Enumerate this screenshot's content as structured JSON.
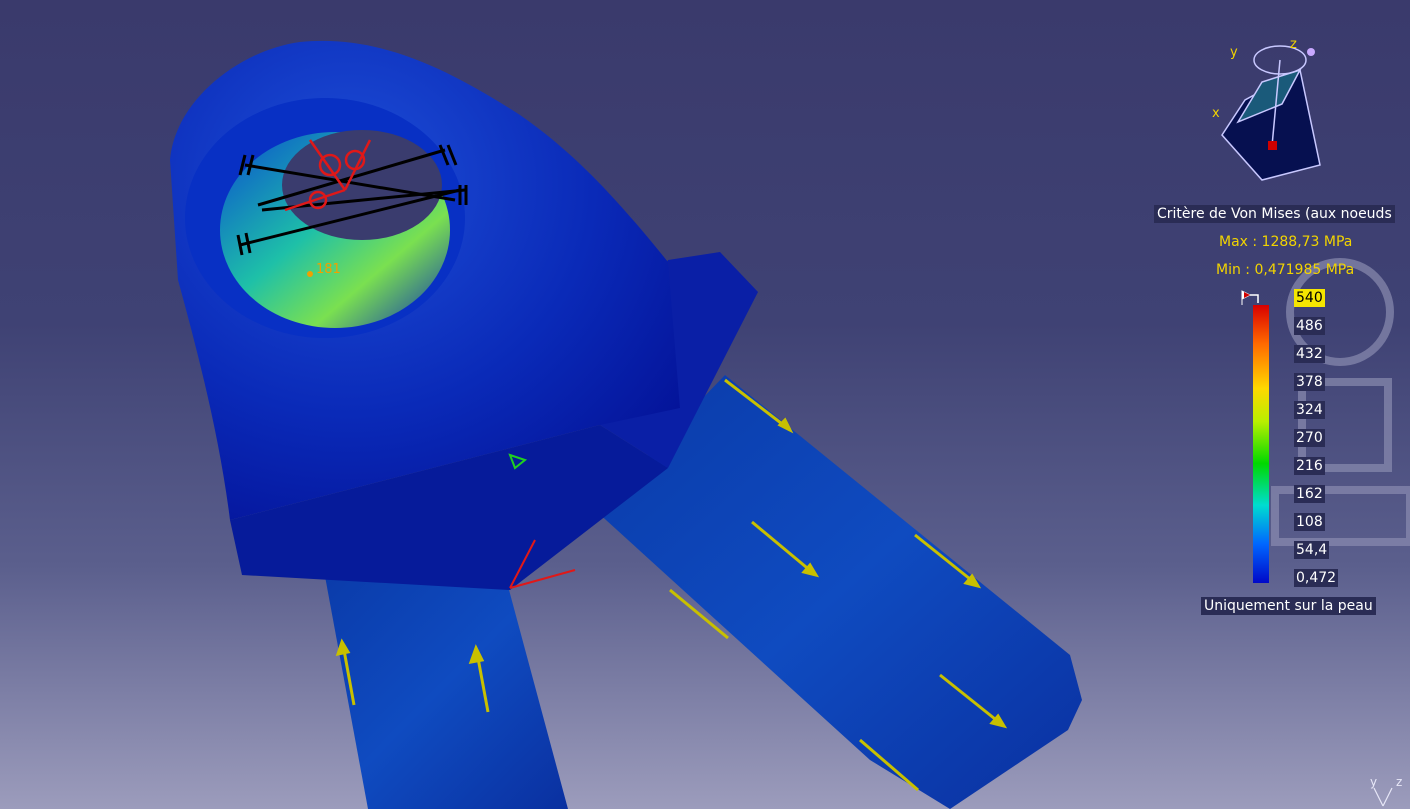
{
  "legend": {
    "title": "Critère de Von Mises (aux noeuds",
    "max": "Max : 1288,73 MPa",
    "min": "Min : 0,471985 MPa",
    "ticks": [
      "540",
      "486",
      "432",
      "378",
      "324",
      "270",
      "216",
      "162",
      "108",
      "54,4",
      "0,472"
    ],
    "footer": "Uniquement sur la peau",
    "colors": {
      "max": "#d80000",
      "mid": "#00d800",
      "min": "#0008c8",
      "text_accent": "#f2d400"
    }
  },
  "probe": {
    "value": "181"
  },
  "compass": {
    "axes": [
      "x",
      "y",
      "z"
    ]
  },
  "axis_triad": {
    "axes": [
      "x",
      "y",
      "z"
    ]
  },
  "icons": [
    "compass-icon",
    "axis-triad-icon",
    "force-arrow-icon",
    "restraint-icon",
    "colorbar-marker-icon"
  ]
}
